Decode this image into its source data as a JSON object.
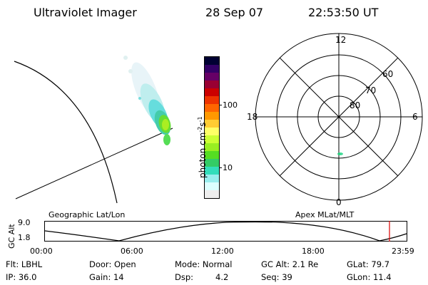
{
  "header": {
    "instrument": "Ultraviolet Imager",
    "date": "28 Sep 07",
    "time": "22:53:50 UT"
  },
  "colorbar": {
    "label": "photon cm",
    "exp1": "-2",
    "mid": "s",
    "exp2": "-1",
    "ticks": [
      {
        "label": "100",
        "value": 100
      },
      {
        "label": "10",
        "value": 10
      }
    ],
    "colors": [
      "#000033",
      "#330066",
      "#660066",
      "#990033",
      "#cc0000",
      "#ee3300",
      "#ff6600",
      "#ff9900",
      "#ffcc33",
      "#ffff66",
      "#ccff33",
      "#99ee22",
      "#55dd22",
      "#33cc66",
      "#33ddbb",
      "#99eeee",
      "#ddffff",
      "#eeeeee"
    ]
  },
  "polar_plot": {
    "mlt_labels": {
      "top": "12",
      "right": "6",
      "bottom": "0",
      "left": "18"
    },
    "lat_labels": [
      "60",
      "70",
      "80"
    ]
  },
  "timeline": {
    "left_title": "Geographic Lat/Lon",
    "right_title": "Apex MLat/MLT",
    "ylabel": "GC Alt",
    "yticks": [
      "9.0",
      "1.8"
    ],
    "xticks": [
      "00:00",
      "06:00",
      "12:00",
      "18:00",
      "23:59"
    ],
    "marker_color": "#dd0000"
  },
  "info": {
    "row1": {
      "flt": "Flt: LBHL",
      "door": "Door: Open",
      "mode": "Mode: Normal",
      "gc_alt": "GC Alt: 2.1 Re",
      "glat": "GLat: 79.7"
    },
    "row2": {
      "ip": "IP: 36.0",
      "gain": "Gain: 14",
      "dsp_label": "Dsp:",
      "dsp_value": "4.2",
      "seq": "Seq: 39",
      "glon": "GLon: 11.4"
    }
  }
}
